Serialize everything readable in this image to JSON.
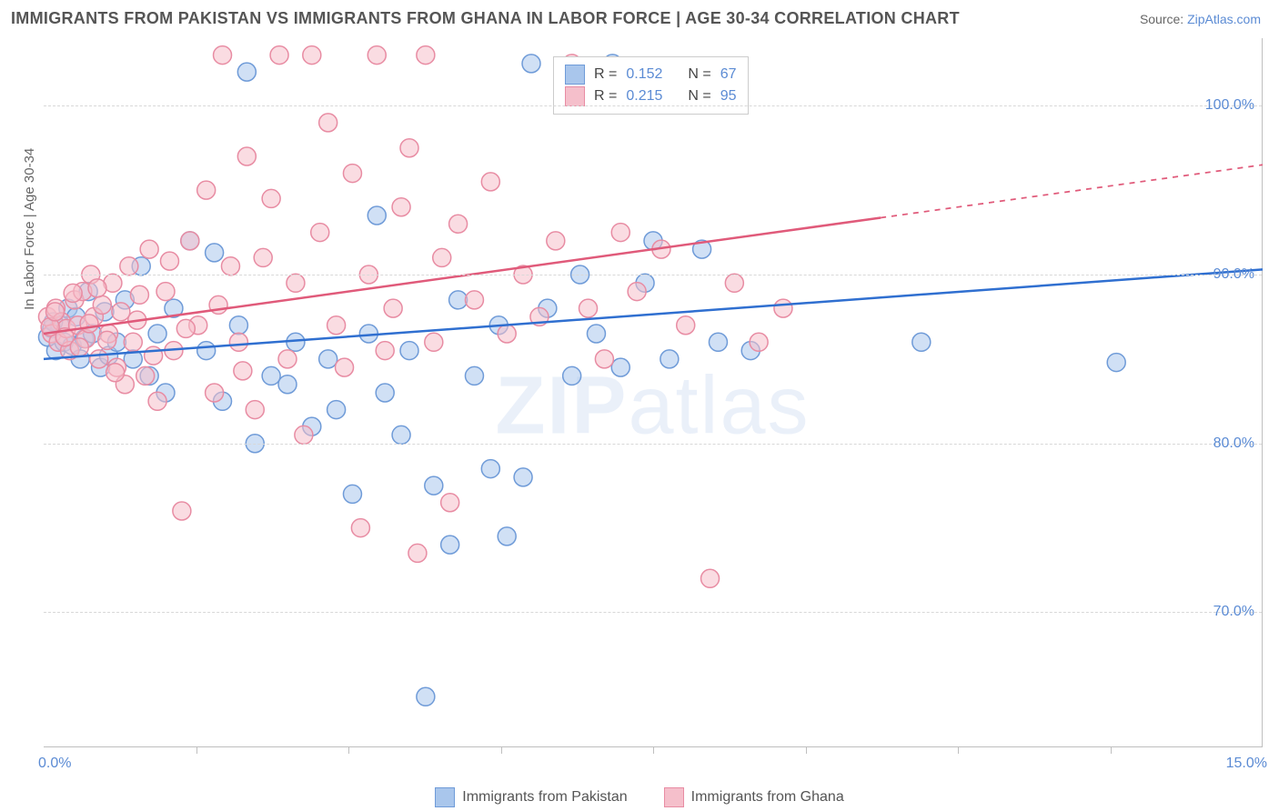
{
  "title": "IMMIGRANTS FROM PAKISTAN VS IMMIGRANTS FROM GHANA IN LABOR FORCE | AGE 30-34 CORRELATION CHART",
  "source_label": "Source: ",
  "source_name": "ZipAtlas.com",
  "y_axis_title": "In Labor Force | Age 30-34",
  "watermark_a": "ZIP",
  "watermark_b": "atlas",
  "chart": {
    "type": "scatter",
    "background_color": "#ffffff",
    "grid_color": "#d8d8d8",
    "border_color": "#bfbfbf",
    "xlim": [
      0.0,
      15.0
    ],
    "ylim": [
      62.0,
      104.0
    ],
    "yticks": [
      70.0,
      80.0,
      90.0,
      100.0
    ],
    "ytick_labels": [
      "70.0%",
      "80.0%",
      "90.0%",
      "100.0%"
    ],
    "xticks_minor": [
      1.875,
      3.75,
      5.625,
      7.5,
      9.375,
      11.25,
      13.125
    ],
    "xtick_labels": {
      "start": "0.0%",
      "end": "15.0%"
    },
    "ytick_color": "#5b8bd4",
    "xtick_color": "#5b8bd4",
    "label_fontsize": 16,
    "title_fontsize": 18,
    "title_color": "#555555",
    "marker_radius": 10,
    "marker_opacity": 0.55,
    "line_width": 2.5,
    "series": [
      {
        "name": "Immigrants from Pakistan",
        "color_fill": "#a9c6ec",
        "color_stroke": "#6f9bd8",
        "line_color": "#2f6fd0",
        "R": "0.152",
        "N": "67",
        "trend": {
          "x1": 0.0,
          "y1": 85.0,
          "x2": 15.0,
          "y2": 90.3,
          "x_solid_end": 15.0
        },
        "points": [
          [
            0.1,
            86.8
          ],
          [
            0.15,
            85.5
          ],
          [
            0.2,
            87.0
          ],
          [
            0.25,
            86.0
          ],
          [
            0.3,
            88.0
          ],
          [
            0.35,
            85.8
          ],
          [
            0.4,
            87.5
          ],
          [
            0.5,
            86.2
          ],
          [
            0.55,
            89.0
          ],
          [
            0.6,
            86.5
          ],
          [
            0.7,
            84.5
          ],
          [
            0.75,
            87.8
          ],
          [
            0.8,
            85.2
          ],
          [
            0.9,
            86.0
          ],
          [
            1.0,
            88.5
          ],
          [
            1.1,
            85.0
          ],
          [
            1.2,
            90.5
          ],
          [
            1.3,
            84.0
          ],
          [
            1.4,
            86.5
          ],
          [
            1.5,
            83.0
          ],
          [
            1.6,
            88.0
          ],
          [
            1.8,
            92.0
          ],
          [
            2.0,
            85.5
          ],
          [
            2.1,
            91.3
          ],
          [
            2.2,
            82.5
          ],
          [
            2.4,
            87.0
          ],
          [
            2.5,
            102.0
          ],
          [
            2.6,
            80.0
          ],
          [
            2.8,
            84.0
          ],
          [
            3.0,
            83.5
          ],
          [
            3.1,
            86.0
          ],
          [
            3.3,
            81.0
          ],
          [
            3.5,
            85.0
          ],
          [
            3.6,
            82.0
          ],
          [
            3.8,
            77.0
          ],
          [
            4.0,
            86.5
          ],
          [
            4.1,
            93.5
          ],
          [
            4.2,
            83.0
          ],
          [
            4.4,
            80.5
          ],
          [
            4.5,
            85.5
          ],
          [
            4.7,
            65.0
          ],
          [
            4.8,
            77.5
          ],
          [
            5.0,
            74.0
          ],
          [
            5.1,
            88.5
          ],
          [
            5.3,
            84.0
          ],
          [
            5.5,
            78.5
          ],
          [
            5.6,
            87.0
          ],
          [
            5.7,
            74.5
          ],
          [
            5.9,
            78.0
          ],
          [
            6.0,
            102.5
          ],
          [
            6.2,
            88.0
          ],
          [
            6.5,
            84.0
          ],
          [
            6.6,
            90.0
          ],
          [
            6.8,
            86.5
          ],
          [
            7.0,
            102.5
          ],
          [
            7.1,
            84.5
          ],
          [
            7.4,
            89.5
          ],
          [
            7.5,
            92.0
          ],
          [
            7.7,
            85.0
          ],
          [
            8.1,
            91.5
          ],
          [
            8.3,
            86.0
          ],
          [
            8.7,
            85.5
          ],
          [
            10.8,
            86.0
          ],
          [
            13.2,
            84.8
          ],
          [
            0.05,
            86.3
          ],
          [
            0.12,
            87.2
          ],
          [
            0.45,
            85.0
          ]
        ]
      },
      {
        "name": "Immigrants from Ghana",
        "color_fill": "#f5bfcb",
        "color_stroke": "#e88ca3",
        "line_color": "#e05a7a",
        "R": "0.215",
        "N": "95",
        "trend": {
          "x1": 0.0,
          "y1": 86.5,
          "x2": 15.0,
          "y2": 96.5,
          "x_solid_end": 10.3
        },
        "points": [
          [
            0.05,
            87.5
          ],
          [
            0.1,
            86.5
          ],
          [
            0.15,
            88.0
          ],
          [
            0.18,
            86.0
          ],
          [
            0.22,
            87.2
          ],
          [
            0.28,
            86.8
          ],
          [
            0.32,
            85.5
          ],
          [
            0.38,
            88.5
          ],
          [
            0.42,
            87.0
          ],
          [
            0.48,
            89.0
          ],
          [
            0.52,
            86.2
          ],
          [
            0.58,
            90.0
          ],
          [
            0.62,
            87.5
          ],
          [
            0.68,
            85.0
          ],
          [
            0.72,
            88.2
          ],
          [
            0.8,
            86.5
          ],
          [
            0.85,
            89.5
          ],
          [
            0.9,
            84.5
          ],
          [
            0.95,
            87.8
          ],
          [
            1.0,
            83.5
          ],
          [
            1.05,
            90.5
          ],
          [
            1.1,
            86.0
          ],
          [
            1.18,
            88.8
          ],
          [
            1.25,
            84.0
          ],
          [
            1.3,
            91.5
          ],
          [
            1.4,
            82.5
          ],
          [
            1.5,
            89.0
          ],
          [
            1.6,
            85.5
          ],
          [
            1.7,
            76.0
          ],
          [
            1.8,
            92.0
          ],
          [
            1.9,
            87.0
          ],
          [
            2.0,
            95.0
          ],
          [
            2.1,
            83.0
          ],
          [
            2.2,
            103.0
          ],
          [
            2.3,
            90.5
          ],
          [
            2.4,
            86.0
          ],
          [
            2.5,
            97.0
          ],
          [
            2.6,
            82.0
          ],
          [
            2.7,
            91.0
          ],
          [
            2.8,
            94.5
          ],
          [
            2.9,
            103.0
          ],
          [
            3.0,
            85.0
          ],
          [
            3.1,
            89.5
          ],
          [
            3.2,
            80.5
          ],
          [
            3.3,
            103.0
          ],
          [
            3.4,
            92.5
          ],
          [
            3.5,
            99.0
          ],
          [
            3.6,
            87.0
          ],
          [
            3.7,
            84.5
          ],
          [
            3.8,
            96.0
          ],
          [
            3.9,
            75.0
          ],
          [
            4.0,
            90.0
          ],
          [
            4.1,
            103.0
          ],
          [
            4.2,
            85.5
          ],
          [
            4.3,
            88.0
          ],
          [
            4.4,
            94.0
          ],
          [
            4.5,
            97.5
          ],
          [
            4.6,
            73.5
          ],
          [
            4.7,
            103.0
          ],
          [
            4.8,
            86.0
          ],
          [
            4.9,
            91.0
          ],
          [
            5.0,
            76.5
          ],
          [
            5.1,
            93.0
          ],
          [
            5.3,
            88.5
          ],
          [
            5.5,
            95.5
          ],
          [
            5.7,
            86.5
          ],
          [
            5.9,
            90.0
          ],
          [
            6.1,
            87.5
          ],
          [
            6.3,
            92.0
          ],
          [
            6.5,
            102.5
          ],
          [
            6.7,
            88.0
          ],
          [
            6.9,
            85.0
          ],
          [
            7.1,
            92.5
          ],
          [
            7.3,
            89.0
          ],
          [
            7.6,
            91.5
          ],
          [
            7.9,
            87.0
          ],
          [
            8.2,
            72.0
          ],
          [
            8.5,
            89.5
          ],
          [
            8.8,
            86.0
          ],
          [
            9.1,
            88.0
          ],
          [
            0.08,
            86.9
          ],
          [
            0.14,
            87.8
          ],
          [
            0.26,
            86.3
          ],
          [
            0.36,
            88.9
          ],
          [
            0.44,
            85.7
          ],
          [
            0.56,
            87.1
          ],
          [
            0.66,
            89.2
          ],
          [
            0.78,
            86.1
          ],
          [
            0.88,
            84.2
          ],
          [
            1.15,
            87.3
          ],
          [
            1.35,
            85.2
          ],
          [
            1.55,
            90.8
          ],
          [
            1.75,
            86.8
          ],
          [
            2.15,
            88.2
          ],
          [
            2.45,
            84.3
          ]
        ]
      }
    ]
  },
  "legend_top": {
    "R_label": "R =",
    "N_label": "N ="
  },
  "legend_bottom": {
    "label1": "Immigrants from Pakistan",
    "label2": "Immigrants from Ghana"
  }
}
